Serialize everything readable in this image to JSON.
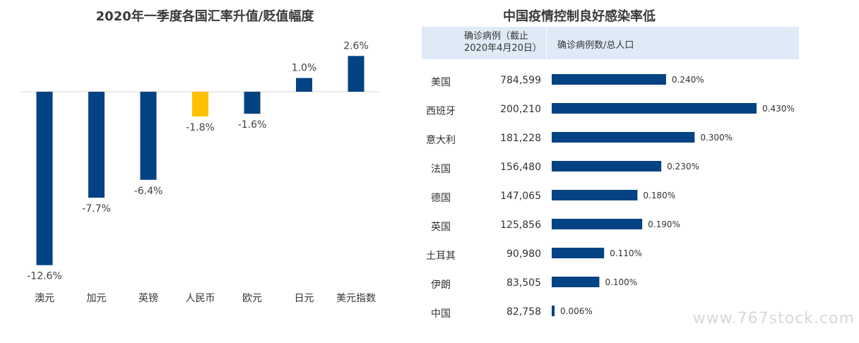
{
  "watermark": "www.767stock.com",
  "chart_data": [
    {
      "type": "bar",
      "title": "2020年一季度各国汇率升值/贬值幅度",
      "categories": [
        "澳元",
        "加元",
        "英镑",
        "人民币",
        "欧元",
        "日元",
        "美元指数"
      ],
      "values": [
        -12.6,
        -7.7,
        -6.4,
        -1.8,
        -1.6,
        1.0,
        2.6
      ],
      "value_labels": [
        "-12.6%",
        "-7.7%",
        "-6.4%",
        "-1.8%",
        "-1.6%",
        "1.0%",
        "2.6%"
      ],
      "highlight": "人民币",
      "colors": {
        "bar": "#034283",
        "highlight": "#ffc000"
      },
      "ylim": [
        -13.5,
        3.0
      ],
      "grid": false
    },
    {
      "type": "bar",
      "orientation": "horizontal",
      "title": "中国疫情控制良好感染率低",
      "table_headers": {
        "cases": "确诊病例（截止\n2020年4月20日）",
        "ratio": "确诊病例数/总人口"
      },
      "categories": [
        "美国",
        "西班牙",
        "意大利",
        "法国",
        "德国",
        "英国",
        "土耳其",
        "伊朗",
        "中国"
      ],
      "cases": [
        "784,599",
        "200,210",
        "181,228",
        "156,480",
        "147,065",
        "125,856",
        "90,980",
        "83,505",
        "82,758"
      ],
      "values": [
        0.24,
        0.43,
        0.3,
        0.23,
        0.18,
        0.19,
        0.11,
        0.1,
        0.006
      ],
      "value_labels": [
        "0.240%",
        "0.430%",
        "0.300%",
        "0.230%",
        "0.180%",
        "0.190%",
        "0.110%",
        "0.100%",
        "0.006%"
      ],
      "colors": {
        "bar": "#034283"
      },
      "xlim": [
        0,
        0.43
      ],
      "grid": false
    }
  ]
}
